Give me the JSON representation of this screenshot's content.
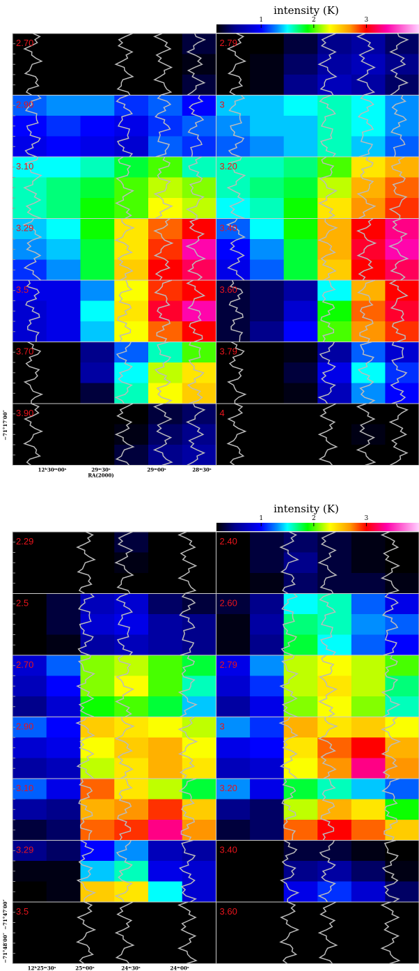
{
  "figures": [
    {
      "colorbar": {
        "title": "intensity (K)",
        "lim": [
          0.15,
          4
        ],
        "ticks": [
          1,
          2,
          3
        ]
      },
      "panels": [
        {
          "label": "2.70",
          "intensity": [
            [
              0,
              0,
              0,
              0,
              0,
              0.3
            ],
            [
              0,
              0,
              0,
              0,
              0,
              0.2
            ],
            [
              0,
              0,
              0,
              0,
              0,
              0.3
            ]
          ]
        },
        {
          "label": "2.79",
          "intensity": [
            [
              0,
              0,
              0.3,
              0.5,
              0.6,
              0.4
            ],
            [
              0,
              0.2,
              0.4,
              0.6,
              0.7,
              0.5
            ],
            [
              0,
              0.2,
              0.5,
              0.7,
              0.6,
              0.4
            ]
          ]
        },
        {
          "label": "2.90",
          "intensity": [
            [
              1.2,
              1.3,
              1.3,
              1.1,
              1.2,
              1.0
            ],
            [
              1.0,
              1.1,
              1.0,
              0.9,
              1.1,
              1.2
            ],
            [
              0.9,
              1.0,
              0.9,
              0.8,
              1.2,
              1.1
            ]
          ]
        },
        {
          "label": "3",
          "intensity": [
            [
              1.4,
              1.4,
              1.5,
              1.6,
              1.5,
              1.3
            ],
            [
              1.3,
              1.4,
              1.4,
              1.6,
              1.5,
              1.3
            ],
            [
              1.2,
              1.3,
              1.4,
              1.6,
              1.4,
              1.2
            ]
          ]
        },
        {
          "label": "3.10",
          "intensity": [
            [
              1.5,
              1.5,
              1.6,
              1.8,
              2.0,
              1.6
            ],
            [
              1.6,
              1.7,
              1.8,
              2.0,
              2.2,
              2.1
            ],
            [
              1.6,
              1.7,
              1.9,
              2.0,
              2.3,
              2.2
            ]
          ]
        },
        {
          "label": "3.20",
          "intensity": [
            [
              1.6,
              1.6,
              1.7,
              2.0,
              2.4,
              2.6
            ],
            [
              1.6,
              1.7,
              1.8,
              2.2,
              2.6,
              2.8
            ],
            [
              1.5,
              1.6,
              1.9,
              2.4,
              2.7,
              2.9
            ]
          ]
        },
        {
          "label": "3.29",
          "intensity": [
            [
              1.4,
              1.5,
              1.9,
              2.4,
              2.8,
              3.0
            ],
            [
              1.3,
              1.4,
              1.8,
              2.4,
              2.9,
              3.4
            ],
            [
              1.1,
              1.3,
              1.8,
              2.5,
              3.0,
              3.2
            ]
          ]
        },
        {
          "label": "3.40",
          "intensity": [
            [
              1.2,
              1.5,
              1.9,
              2.6,
              3.0,
              3.3
            ],
            [
              1.0,
              1.3,
              1.8,
              2.6,
              3.1,
              3.4
            ],
            [
              0.9,
              1.2,
              1.8,
              2.5,
              3.0,
              3.2
            ]
          ]
        },
        {
          "label": "3.5",
          "intensity": [
            [
              0.9,
              0.9,
              1.3,
              2.3,
              2.9,
              3.0
            ],
            [
              0.8,
              0.9,
              1.5,
              2.4,
              3.1,
              3.4
            ],
            [
              0.8,
              0.9,
              1.4,
              2.3,
              2.8,
              3.0
            ]
          ]
        },
        {
          "label": "3.60",
          "intensity": [
            [
              0.3,
              0.4,
              0.6,
              1.5,
              2.6,
              3.0
            ],
            [
              0.3,
              0.4,
              0.8,
              1.9,
              2.8,
              3.1
            ],
            [
              0.3,
              0.5,
              1.0,
              2.0,
              2.7,
              2.9
            ]
          ]
        },
        {
          "label": "3.70",
          "intensity": [
            [
              0,
              0,
              0.5,
              1.2,
              1.6,
              2.0
            ],
            [
              0,
              0,
              0.6,
              1.5,
              2.2,
              2.4
            ],
            [
              0,
              0,
              0.3,
              1.6,
              2.3,
              2.5
            ]
          ]
        },
        {
          "label": "3.79",
          "intensity": [
            [
              0,
              0,
              0.2,
              0.6,
              1.2,
              0.8
            ],
            [
              0,
              0,
              0.3,
              0.9,
              1.5,
              1.1
            ],
            [
              0,
              0,
              0.2,
              0.7,
              1.3,
              1.0
            ]
          ]
        },
        {
          "label": "3.90",
          "intensity": [
            [
              0,
              0,
              0,
              0,
              0.3,
              0.4
            ],
            [
              0,
              0,
              0,
              0.2,
              0.4,
              0.5
            ],
            [
              0,
              0,
              0,
              0.3,
              0.5,
              0.6
            ]
          ]
        },
        {
          "label": "4",
          "intensity": [
            [
              0,
              0,
              0,
              0,
              0.1,
              0
            ],
            [
              0,
              0,
              0,
              0.1,
              0.2,
              0.1
            ],
            [
              0,
              0,
              0,
              0,
              0.1,
              0
            ]
          ]
        }
      ],
      "x_tick_labels": [
        "12ʰ30ᵐ00ˢ",
        "29ᵐ30ˢ",
        "29ᵐ00ˢ",
        "28ᵐ30ˢ"
      ],
      "x_label": "RA(2000)",
      "y_tick_labels": [
        "−71°17′00″"
      ]
    },
    {
      "colorbar": {
        "title": "intensity (K)",
        "lim": [
          0.15,
          4
        ],
        "ticks": [
          1,
          2,
          3
        ]
      },
      "panels": [
        {
          "label": "2.29",
          "intensity": [
            [
              0,
              0,
              0,
              0.3,
              0,
              0
            ],
            [
              0,
              0,
              0,
              0.2,
              0,
              0
            ],
            [
              0,
              0,
              0,
              0,
              0,
              0
            ]
          ]
        },
        {
          "label": "2.40",
          "intensity": [
            [
              0,
              0.3,
              0.4,
              0.3,
              0.2,
              0
            ],
            [
              0,
              0.3,
              0.5,
              0.3,
              0.2,
              0
            ],
            [
              0,
              0.2,
              0.4,
              0.3,
              0.3,
              0.2
            ]
          ]
        },
        {
          "label": "2.5",
          "intensity": [
            [
              0,
              0.3,
              0.7,
              0.8,
              0.4,
              0.3
            ],
            [
              0,
              0.3,
              0.8,
              0.9,
              0.6,
              0.5
            ],
            [
              0,
              0.2,
              0.6,
              0.7,
              0.6,
              0.5
            ]
          ]
        },
        {
          "label": "2.60",
          "intensity": [
            [
              0.3,
              0.5,
              1.5,
              1.6,
              1.2,
              0.9
            ],
            [
              0.2,
              0.6,
              1.7,
              1.6,
              1.3,
              1.2
            ],
            [
              0.2,
              0.5,
              1.8,
              1.5,
              1.2,
              1.0
            ]
          ]
        },
        {
          "label": "2.70",
          "intensity": [
            [
              0.8,
              1.2,
              2.1,
              2.2,
              2.0,
              1.8
            ],
            [
              0.7,
              1.0,
              2.1,
              2.3,
              2.0,
              1.6
            ],
            [
              0.5,
              0.8,
              1.9,
              2.0,
              1.8,
              1.4
            ]
          ]
        },
        {
          "label": "2.79",
          "intensity": [
            [
              0.9,
              1.3,
              2.2,
              2.3,
              2.2,
              2.0
            ],
            [
              0.8,
              1.1,
              2.2,
              2.4,
              2.2,
              1.7
            ],
            [
              0.6,
              0.9,
              2.1,
              2.3,
              2.1,
              1.6
            ]
          ]
        },
        {
          "label": "2.90",
          "intensity": [
            [
              1.2,
              1.0,
              2.5,
              2.4,
              2.3,
              2.2
            ],
            [
              0.8,
              0.9,
              2.3,
              2.5,
              2.6,
              2.3
            ],
            [
              0.6,
              0.7,
              2.2,
              2.4,
              2.6,
              2.4
            ]
          ]
        },
        {
          "label": "3",
          "intensity": [
            [
              1.3,
              1.1,
              2.6,
              2.4,
              2.5,
              2.3
            ],
            [
              0.9,
              1.0,
              2.4,
              2.8,
              3.0,
              2.6
            ],
            [
              0.7,
              0.8,
              2.3,
              2.7,
              3.3,
              2.7
            ]
          ]
        },
        {
          "label": "3.10",
          "intensity": [
            [
              1.2,
              0.9,
              2.8,
              2.4,
              2.2,
              1.8
            ],
            [
              0.6,
              0.5,
              2.6,
              2.7,
              2.9,
              2.5
            ],
            [
              0.3,
              0.4,
              2.8,
              2.9,
              3.3,
              2.7
            ]
          ]
        },
        {
          "label": "3.20",
          "intensity": [
            [
              1.3,
              0.9,
              1.8,
              1.6,
              1.4,
              1.2
            ],
            [
              0.5,
              0.4,
              2.2,
              2.6,
              2.4,
              1.9
            ],
            [
              0.3,
              0.4,
              2.8,
              3.0,
              2.8,
              2.5
            ]
          ]
        },
        {
          "label": "3.29",
          "intensity": [
            [
              0.5,
              0.4,
              1.0,
              1.3,
              0.7,
              0.6
            ],
            [
              0.2,
              0.2,
              1.4,
              1.6,
              0.9,
              0.8
            ],
            [
              0.1,
              0.2,
              2.5,
              2.4,
              1.5,
              0.8
            ]
          ]
        },
        {
          "label": "3.40",
          "intensity": [
            [
              0,
              0.1,
              0.3,
              0.3,
              0.2,
              0.1
            ],
            [
              0,
              0.1,
              0.5,
              0.6,
              0.4,
              0.2
            ],
            [
              0,
              0.1,
              0.9,
              1.1,
              0.8,
              0.4
            ]
          ]
        },
        {
          "label": "3.5",
          "intensity": [
            [
              0,
              0,
              0.1,
              0.1,
              0,
              0
            ],
            [
              0,
              0,
              0,
              0.1,
              0,
              0
            ],
            [
              0,
              0,
              0,
              0,
              0,
              0
            ]
          ]
        },
        {
          "label": "3.60",
          "intensity": [
            [
              0,
              0,
              0.1,
              0,
              0,
              0
            ],
            [
              0,
              0,
              0,
              0.1,
              0,
              0
            ],
            [
              0,
              0,
              0,
              0,
              0,
              0
            ]
          ]
        }
      ],
      "x_tick_labels": [
        "12ʰ25ᵐ30ˢ",
        "25ᵐ00ˢ",
        "24ᵐ30ˢ",
        "24ᵐ00ˢ"
      ],
      "y_tick_labels": [
        "−71°47′00″",
        "−71°48′00″"
      ]
    }
  ]
}
